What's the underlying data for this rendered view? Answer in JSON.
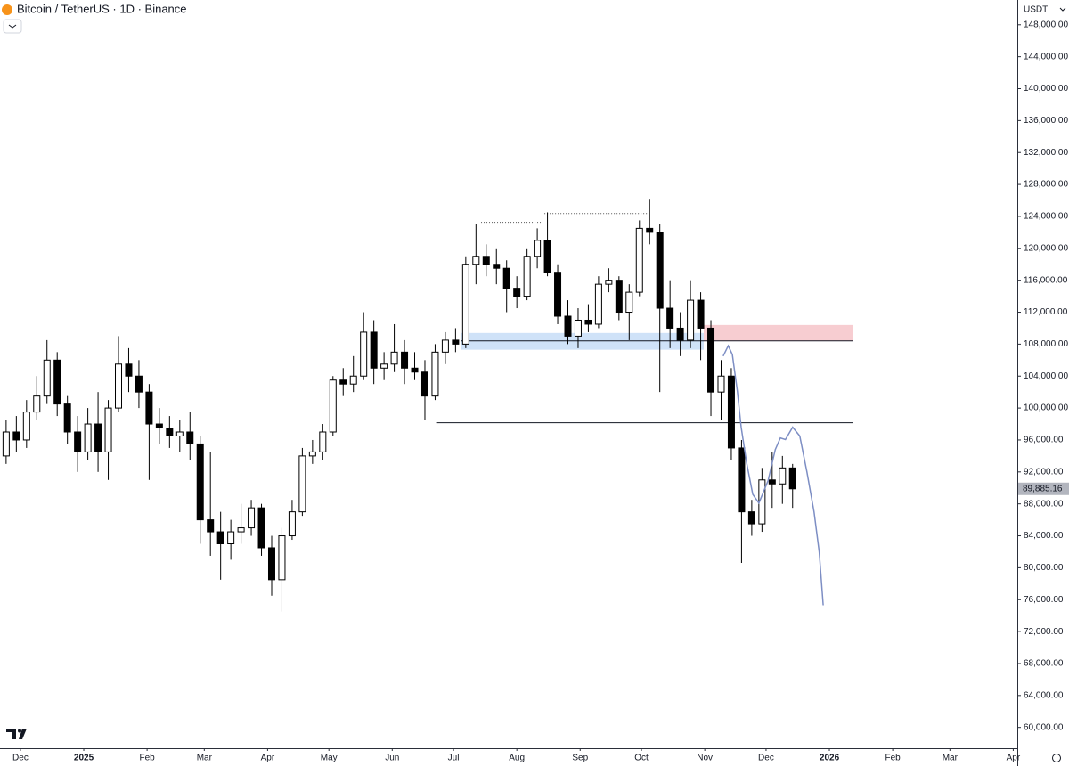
{
  "chart_data": {
    "type": "candlestick",
    "title": "Bitcoin / TetherUS · 1D · Binance",
    "y_axis_label": "USDT",
    "last_price_label": "89,885.16",
    "up_color": "#ffffff",
    "down_color": "#000000",
    "border_color": "#000000",
    "grid": false,
    "xlim": [
      -0.6,
      99
    ],
    "xticks": [
      {
        "value": 1.4,
        "label": "Dec"
      },
      {
        "value": 7.6,
        "label": "2025"
      },
      {
        "value": 13.8,
        "label": "Feb"
      },
      {
        "value": 19.4,
        "label": "Mar"
      },
      {
        "value": 25.6,
        "label": "Apr"
      },
      {
        "value": 31.6,
        "label": "May"
      },
      {
        "value": 37.8,
        "label": "Jun"
      },
      {
        "value": 43.8,
        "label": "Jul"
      },
      {
        "value": 50,
        "label": "Aug"
      },
      {
        "value": 56.2,
        "label": "Sep"
      },
      {
        "value": 62.2,
        "label": "Oct"
      },
      {
        "value": 68.4,
        "label": "Nov"
      },
      {
        "value": 74.4,
        "label": "Dec"
      },
      {
        "value": 80.6,
        "label": "2026"
      },
      {
        "value": 86.8,
        "label": "Feb"
      },
      {
        "value": 92.4,
        "label": "Mar"
      },
      {
        "value": 98.6,
        "label": "Apr"
      }
    ],
    "ylim": [
      57400,
      151100
    ],
    "yticks": [
      {
        "value": 60000,
        "label": "60,000.00"
      },
      {
        "value": 64000,
        "label": "64,000.00"
      },
      {
        "value": 68000,
        "label": "68,000.00"
      },
      {
        "value": 72000,
        "label": "72,000.00"
      },
      {
        "value": 76000,
        "label": "76,000.00"
      },
      {
        "value": 80000,
        "label": "80,000.00"
      },
      {
        "value": 84000,
        "label": "84,000.00"
      },
      {
        "value": 88000,
        "label": "88,000.00"
      },
      {
        "value": 92000,
        "label": "92,000.00"
      },
      {
        "value": 96000,
        "label": "96,000.00"
      },
      {
        "value": 100000,
        "label": "100,000.00"
      },
      {
        "value": 104000,
        "label": "104,000.00"
      },
      {
        "value": 108000,
        "label": "108,000.00"
      },
      {
        "value": 112000,
        "label": "112,000.00"
      },
      {
        "value": 116000,
        "label": "116,000.00"
      },
      {
        "value": 120000,
        "label": "120,000.00"
      },
      {
        "value": 124000,
        "label": "124,000.00"
      },
      {
        "value": 128000,
        "label": "128,000.00"
      },
      {
        "value": 132000,
        "label": "132,000.00"
      },
      {
        "value": 136000,
        "label": "136,000.00"
      },
      {
        "value": 140000,
        "label": "140,000.00"
      },
      {
        "value": 144000,
        "label": "144,000.00"
      },
      {
        "value": 148000,
        "label": "148,000.00"
      }
    ],
    "open": [
      94000,
      97000,
      96000,
      99500,
      101500,
      106000,
      100500,
      97000,
      94500,
      98000,
      94500,
      100000,
      105500,
      104000,
      102000,
      98000,
      97500,
      96500,
      97000,
      95500,
      86000,
      84500,
      83000,
      84500,
      85000,
      87500,
      82500,
      78500,
      84000,
      87000,
      94000,
      94500,
      97000,
      103500,
      103000,
      104000,
      109500,
      105000,
      105500,
      107000,
      105000,
      104500,
      101500,
      107000,
      108500,
      108000,
      118000,
      119000,
      118000,
      117500,
      115000,
      114000,
      119000,
      121000,
      117000,
      111500,
      109000,
      111000,
      110500,
      115500,
      116000,
      112000,
      114500,
      122500,
      122000,
      112500,
      110000,
      108500,
      113500,
      110000,
      102000,
      104000,
      95000,
      87000,
      85500,
      91000,
      90500,
      92500
    ],
    "high": [
      98500,
      99000,
      101000,
      104000,
      108500,
      107000,
      101500,
      99000,
      100000,
      102000,
      101000,
      109000,
      107500,
      106000,
      103000,
      100000,
      99000,
      98500,
      99500,
      96500,
      94500,
      87000,
      86000,
      88000,
      88500,
      88000,
      84000,
      85000,
      88500,
      95000,
      96000,
      98000,
      104000,
      105000,
      106500,
      112000,
      111000,
      107000,
      110500,
      108500,
      107000,
      106000,
      108000,
      109500,
      110000,
      119000,
      123000,
      120500,
      120000,
      118500,
      116500,
      120000,
      122500,
      124500,
      118000,
      113500,
      112500,
      113000,
      116500,
      117500,
      116500,
      115500,
      123500,
      126200,
      123000,
      116000,
      112000,
      116000,
      114500,
      111000,
      106000,
      105000,
      96000,
      88500,
      92500,
      94500,
      94000,
      93000
    ],
    "low": [
      93000,
      94500,
      95000,
      98500,
      100500,
      99000,
      95500,
      92000,
      93500,
      92000,
      91000,
      99500,
      102000,
      100000,
      91000,
      95500,
      95000,
      94500,
      93500,
      83000,
      81500,
      78500,
      81000,
      83000,
      84000,
      81500,
      76500,
      74500,
      83500,
      86500,
      93000,
      93500,
      96500,
      101500,
      102000,
      103500,
      103000,
      103500,
      104500,
      103000,
      103500,
      98500,
      101000,
      105500,
      107000,
      107500,
      115500,
      116500,
      115500,
      112000,
      112500,
      113500,
      117500,
      116500,
      110500,
      108000,
      107500,
      109500,
      110000,
      114500,
      111000,
      108500,
      114000,
      120500,
      102000,
      107500,
      106500,
      107500,
      106000,
      99000,
      98500,
      93500,
      80600,
      84000,
      84500,
      87500,
      88000,
      87500
    ],
    "close": [
      97000,
      96000,
      99500,
      101500,
      106000,
      100500,
      97000,
      94500,
      98000,
      94500,
      100000,
      105500,
      104000,
      102000,
      98000,
      97500,
      96500,
      97000,
      95500,
      86000,
      84500,
      83000,
      84500,
      85000,
      87500,
      82500,
      78500,
      84000,
      87000,
      94000,
      94500,
      97000,
      103500,
      103000,
      104000,
      109500,
      105000,
      105500,
      107000,
      105000,
      104500,
      101500,
      107000,
      108500,
      108000,
      118000,
      119000,
      118000,
      117500,
      115000,
      114000,
      119000,
      121000,
      117000,
      111500,
      109000,
      111000,
      110500,
      115500,
      116000,
      112000,
      114500,
      122500,
      122000,
      112500,
      110000,
      108500,
      113500,
      110000,
      102000,
      104000,
      95000,
      87000,
      85500,
      91000,
      90500,
      92500,
      89885.16
    ],
    "zones": [
      {
        "color": "#cfe2f8",
        "x": [
          44.5,
          68.3
        ],
        "y": [
          107300,
          109400
        ]
      },
      {
        "color": "#f7cdd1",
        "x": [
          68.3,
          82.9
        ],
        "y": [
          108400,
          110400
        ]
      }
    ],
    "levels": [
      {
        "x": [
          44.5,
          82.9
        ],
        "y": 108400,
        "style": "solid"
      },
      {
        "x": [
          42.1,
          82.9
        ],
        "y": 98150,
        "style": "solid"
      },
      {
        "x": [
          46.5,
          52.6
        ],
        "y": 123250,
        "style": "dotted"
      },
      {
        "x": [
          52.7,
          62.9
        ],
        "y": 124350,
        "style": "dotted"
      },
      {
        "x": [
          64.6,
          67.6
        ],
        "y": 115900,
        "style": "dotted"
      }
    ],
    "projection": {
      "color": "#7d8ec4",
      "x": [
        70.2,
        70.7,
        71.1,
        71.6,
        71.96,
        72.5,
        73.1,
        73.7,
        74.6,
        75.3,
        75.8,
        76.3,
        77.0,
        77.7,
        78.4,
        79.1,
        79.6,
        80.0
      ],
      "values": [
        106500,
        107800,
        106700,
        102050,
        97600,
        93100,
        89200,
        88100,
        90900,
        94800,
        96250,
        96050,
        97600,
        96500,
        92000,
        87000,
        82000,
        75300
      ]
    }
  }
}
